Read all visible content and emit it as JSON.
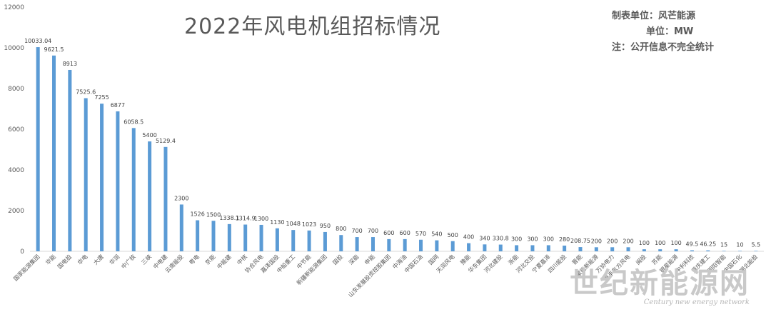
{
  "header": {
    "title": "2022年风电机组招标情况",
    "notes": [
      "制表单位：风芒能源",
      "单位：MW",
      "注：公开信息不完全统计"
    ]
  },
  "watermark": {
    "cn": "世纪新能源网",
    "en": "Century new energy network"
  },
  "colors": {
    "bar": "#5b9bd5",
    "axis_text": "#595959",
    "grid": "#d9d9d9"
  },
  "chart_data": {
    "type": "bar",
    "title": "2022年风电机组招标情况",
    "xlabel": "",
    "ylabel": "",
    "ylim": [
      0,
      12000
    ],
    "yticks": [
      0,
      2000,
      4000,
      6000,
      8000,
      10000,
      12000
    ],
    "grid": false,
    "legend": "none",
    "categories": [
      "国家能源集团",
      "华能",
      "国电投",
      "华电",
      "大唐",
      "华润",
      "中广核",
      "三峡",
      "中电建",
      "云南能投",
      "粤电",
      "京能",
      "中能建",
      "中核",
      "协合风电",
      "嘉泽国投",
      "中船重工",
      "中节能",
      "新疆新能源集团",
      "国投",
      "深能",
      "申能",
      "山东发展投资控股集团",
      "中海油",
      "中国石油",
      "国网",
      "天润风电",
      "豫能",
      "华东集团",
      "河北建投",
      "浙能",
      "河北交投",
      "宁夏嘉泽",
      "四川能投",
      "晋能",
      "蒙能新能源",
      "万协电力",
      "泰丰东方风电",
      "闽投",
      "苏能",
      "银星能源",
      "中利科技",
      "重庆建工",
      "明阳智能",
      "中国石化",
      "湖北能投"
    ],
    "values": [
      10033.04,
      9621.5,
      8913,
      7525.6,
      7255,
      6877,
      6058.5,
      5400,
      5129.4,
      2300,
      1526,
      1500,
      1338.1,
      1314.9,
      1300,
      1130,
      1048,
      1023,
      950,
      800,
      700,
      700,
      600,
      600,
      570,
      540,
      500,
      400,
      340,
      330.8,
      300,
      300,
      300,
      280,
      208.75,
      200,
      200,
      200,
      100,
      100,
      100,
      49.5,
      46.25,
      15,
      10,
      5.5
    ],
    "data_labels": [
      "10033.04",
      "9621.5",
      "8913",
      "7525.6",
      "7255",
      "6877",
      "6058.5",
      "5400",
      "5129.4",
      "2300",
      "1526",
      "1500",
      "1338.1",
      "1314.9",
      "1300",
      "1130",
      "1048",
      "1023",
      "950",
      "800",
      "700",
      "700",
      "600",
      "600",
      "570",
      "540",
      "500",
      "400",
      "340",
      "330.8",
      "300",
      "300",
      "300",
      "280",
      "208.75",
      "200",
      "200",
      "200",
      "100",
      "100",
      "100",
      "49.5",
      "46.25",
      "15",
      "10",
      "5.5"
    ]
  }
}
